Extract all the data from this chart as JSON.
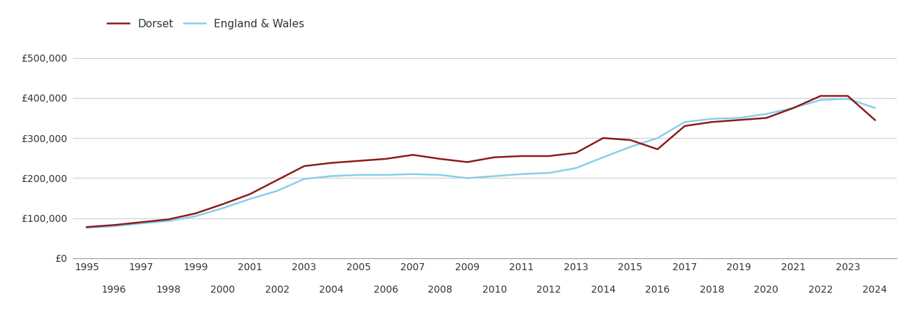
{
  "dorset_years": [
    1995,
    1996,
    1997,
    1998,
    1999,
    2000,
    2001,
    2002,
    2003,
    2004,
    2005,
    2006,
    2007,
    2008,
    2009,
    2010,
    2011,
    2012,
    2013,
    2014,
    2015,
    2016,
    2017,
    2018,
    2019,
    2020,
    2021,
    2022,
    2023,
    2024
  ],
  "dorset_values": [
    78000,
    83000,
    90000,
    97000,
    112000,
    135000,
    160000,
    195000,
    230000,
    238000,
    243000,
    248000,
    258000,
    248000,
    240000,
    252000,
    255000,
    255000,
    263000,
    300000,
    295000,
    272000,
    330000,
    340000,
    345000,
    350000,
    375000,
    405000,
    405000,
    345000
  ],
  "england_years": [
    1995,
    1996,
    1997,
    1998,
    1999,
    2000,
    2001,
    2002,
    2003,
    2004,
    2005,
    2006,
    2007,
    2008,
    2009,
    2010,
    2011,
    2012,
    2013,
    2014,
    2015,
    2016,
    2017,
    2018,
    2019,
    2020,
    2021,
    2022,
    2023,
    2024
  ],
  "england_values": [
    76000,
    80000,
    87000,
    93000,
    105000,
    125000,
    148000,
    168000,
    198000,
    205000,
    208000,
    208000,
    210000,
    208000,
    200000,
    205000,
    210000,
    213000,
    225000,
    252000,
    278000,
    300000,
    340000,
    348000,
    350000,
    360000,
    375000,
    395000,
    398000,
    375000
  ],
  "dorset_color": "#8B1A1A",
  "england_color": "#87CEEB",
  "dorset_label": "Dorset",
  "england_label": "England & Wales",
  "ylim": [
    0,
    550000
  ],
  "yticks": [
    0,
    100000,
    200000,
    300000,
    400000,
    500000
  ],
  "ytick_labels": [
    "£0",
    "£100,000",
    "£200,000",
    "£300,000",
    "£400,000",
    "£500,000"
  ],
  "background_color": "#ffffff",
  "grid_color": "#cccccc",
  "line_width": 1.8,
  "legend_fontsize": 11,
  "tick_fontsize": 10,
  "xtick_major": [
    1995,
    1997,
    1999,
    2001,
    2003,
    2005,
    2007,
    2009,
    2011,
    2013,
    2015,
    2017,
    2019,
    2021,
    2023
  ],
  "xtick_minor": [
    1996,
    1998,
    2000,
    2002,
    2004,
    2006,
    2008,
    2010,
    2012,
    2014,
    2016,
    2018,
    2020,
    2022,
    2024
  ],
  "xlim": [
    1994.5,
    2024.8
  ]
}
